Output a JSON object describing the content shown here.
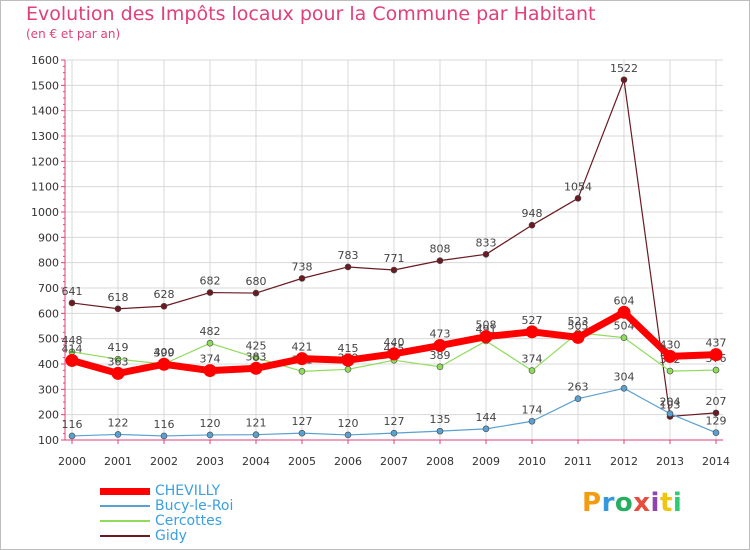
{
  "title": "Evolution des Impôts locaux pour la Commune par Habitant",
  "subtitle": "(en € et par an)",
  "logo": {
    "text": "Proxiti",
    "colors": [
      "#f39c12",
      "#3498db",
      "#27ae60",
      "#e74c3c",
      "#8e44ad",
      "#f1c40f",
      "#2ecc71"
    ]
  },
  "chart_data": {
    "type": "line",
    "title": "Evolution des Impôts locaux pour la Commune par Habitant",
    "subtitle": "(en € et par an)",
    "x": [
      "2000",
      "2001",
      "2002",
      "2003",
      "2004",
      "2005",
      "2006",
      "2007",
      "2008",
      "2009",
      "2010",
      "2011",
      "2012",
      "2013",
      "2014"
    ],
    "ylim": [
      100,
      1600
    ],
    "yticks": [
      100,
      200,
      300,
      400,
      500,
      600,
      700,
      800,
      900,
      1000,
      1100,
      1200,
      1300,
      1400,
      1500,
      1600
    ],
    "grid": true,
    "legend_position": "bottom-left",
    "series": [
      {
        "name": "Gidy",
        "color": "#6b1a22",
        "width": 1.2,
        "marker": 3,
        "values": [
          641,
          618,
          628,
          682,
          680,
          738,
          783,
          771,
          808,
          833,
          948,
          1054,
          1522,
          193,
          207
        ],
        "labels": [
          "641",
          "618",
          "628",
          "682",
          "680",
          "738",
          "783",
          "771",
          "808",
          "833",
          "948",
          "1054",
          "1522",
          "193",
          "207"
        ]
      },
      {
        "name": "Cercottes",
        "color": "#8fdc5a",
        "width": 1.2,
        "marker": 3,
        "values": [
          448,
          419,
          400,
          482,
          425,
          371,
          379,
          415,
          389,
          491,
          374,
          523,
          504,
          372,
          376
        ],
        "labels": [
          "448",
          "419",
          "400",
          "482",
          "425",
          "371",
          "379",
          "415",
          "389",
          "491",
          "374",
          "523",
          "504",
          "372",
          "376"
        ]
      },
      {
        "name": "Bucy-le-Roi",
        "color": "#5aa0d0",
        "width": 1.2,
        "marker": 3,
        "values": [
          116,
          122,
          116,
          120,
          121,
          127,
          120,
          127,
          135,
          144,
          174,
          263,
          304,
          204,
          129
        ],
        "labels": [
          "116",
          "122",
          "116",
          "120",
          "121",
          "127",
          "120",
          "127",
          "135",
          "144",
          "174",
          "263",
          "304",
          "204",
          "129"
        ]
      },
      {
        "name": "CHEVILLY",
        "color": "#ff0000",
        "width": 7,
        "marker": 6,
        "values": [
          414,
          363,
          399,
          374,
          383,
          421,
          415,
          440,
          473,
          508,
          527,
          505,
          604,
          430,
          437
        ],
        "labels": [
          "414",
          "363",
          "399",
          "374",
          "383",
          "421",
          "415",
          "440",
          "473",
          "508",
          "527",
          "505",
          "604",
          "430",
          "437"
        ]
      }
    ],
    "legend": [
      "CHEVILLY",
      "Bucy-le-Roi",
      "Cercottes",
      "Gidy"
    ]
  }
}
